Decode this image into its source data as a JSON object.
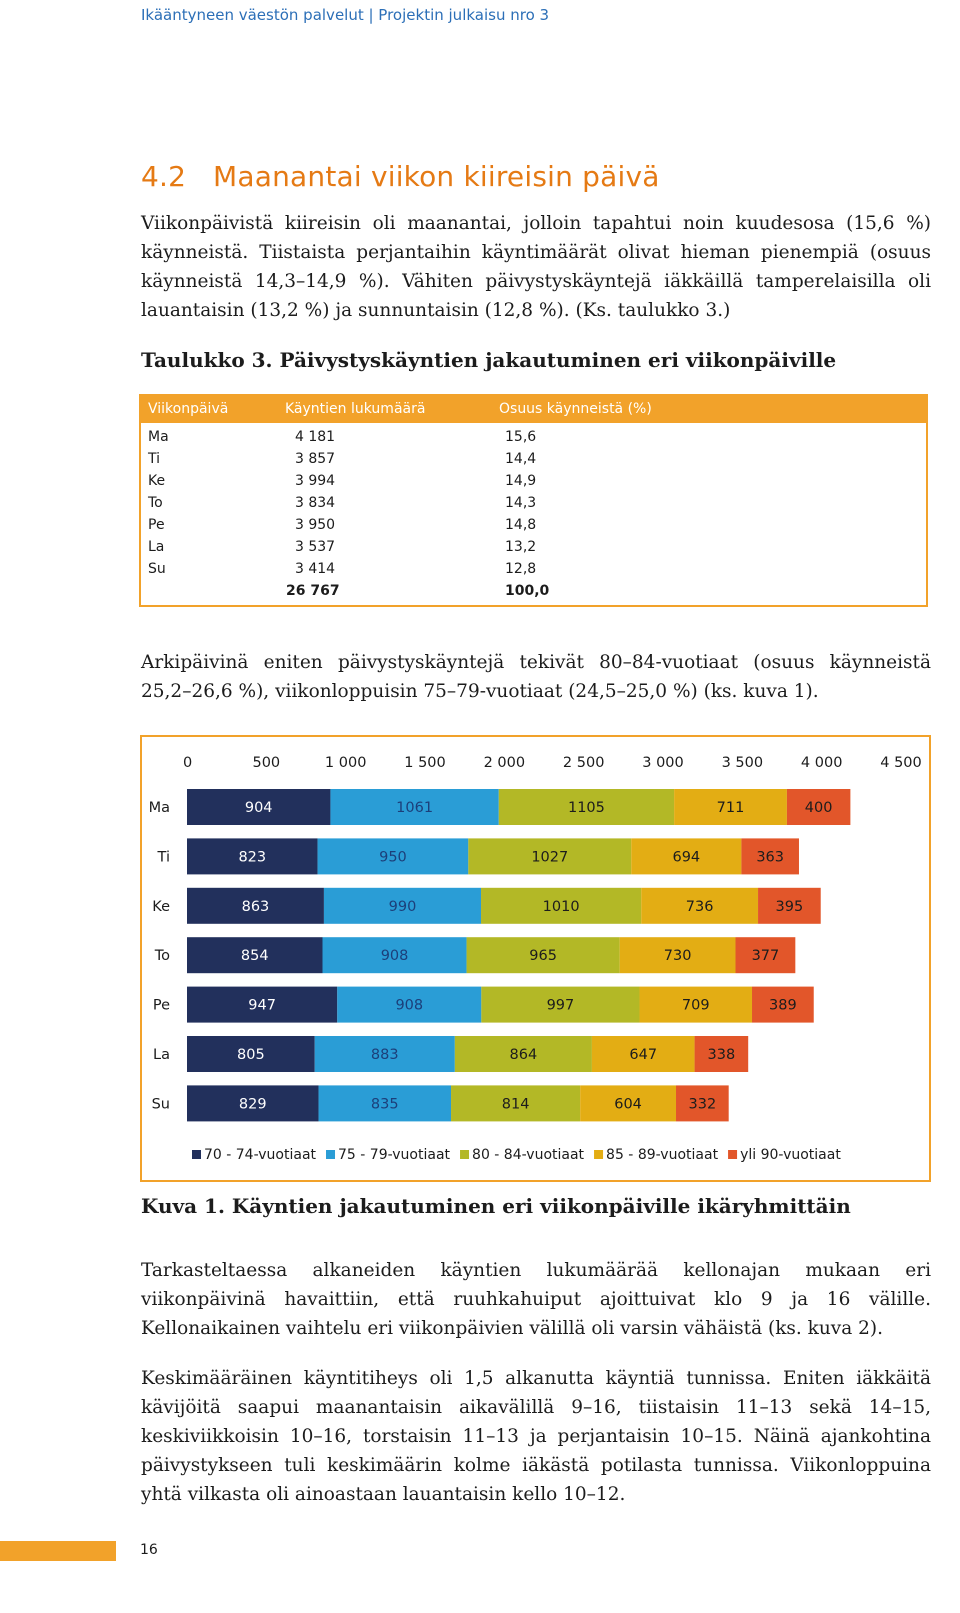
{
  "header": {
    "running_title": "Ikääntyneen väestön palvelut | Projektin julkaisu nro 3"
  },
  "section": {
    "number": "4.2",
    "title": "Maanantai viikon kiireisin päivä"
  },
  "paragraphs": {
    "p1": "Viikonpäivistä kiireisin oli maanantai, jolloin tapahtui noin kuudesosa (15,6 %) käynneistä. Tiistaista perjantaihin käyntimäärät olivat hieman pienempiä (osuus käynneistä 14,3–14,9 %). Vähiten päivystyskäyntejä iäkkäillä tamperelaisilla oli lauantaisin (13,2 %) ja sunnuntaisin (12,8 %). (Ks. taulukko 3.)",
    "p2": "Arkipäivinä eniten päivystyskäyntejä tekivät 80–84-vuotiaat (osuus käynneistä 25,2–26,6 %), viikonloppuisin 75–79-vuotiaat (24,5–25,0 %) (ks. kuva 1).",
    "p3": "Tarkasteltaessa alkaneiden käyntien lukumäärää kellonajan mukaan eri viikonpäivinä havaittiin, että ruuhkahuiput ajoittuivat klo 9 ja 16 välille. Kellonaikainen vaihtelu eri viikonpäivien välillä oli varsin vähäistä (ks. kuva 2).",
    "p4": "Keskimääräinen käyntitiheys oli 1,5 alkanutta käyntiä tunnissa. Eniten iäkkäitä kävijöitä saapui maanantaisin aikavälillä 9–16, tiistaisin 11–13 sekä 14–15, keskiviikkoisin 10–16, torstaisin 11–13 ja perjantaisin 10–15. Näinä ajankohtina päivystykseen tuli keskimäärin kolme iäkästä potilasta tunnissa. Viikonloppuina yhtä vilkasta oli ainoastaan lauantaisin kello 10–12."
  },
  "table": {
    "caption": "Taulukko 3. Päivystyskäyntien jakautuminen eri viikonpäiville",
    "headers": [
      "Viikonpäivä",
      "Käyntien lukumäärä",
      "Osuus käynneistä (%)"
    ],
    "rows": [
      [
        "Ma",
        "4 181",
        "15,6"
      ],
      [
        "Ti",
        "3 857",
        "14,4"
      ],
      [
        "Ke",
        "3 994",
        "14,9"
      ],
      [
        "To",
        "3 834",
        "14,3"
      ],
      [
        "Pe",
        "3 950",
        "14,8"
      ],
      [
        "La",
        "3 537",
        "13,2"
      ],
      [
        "Su",
        "3 414",
        "12,8"
      ]
    ],
    "total": [
      "",
      "26 767",
      "100,0"
    ]
  },
  "figure_caption": "Kuva 1. Käyntien jakautuminen eri viikonpäiville ikäryhmittäin",
  "colors": {
    "accent": "#f2a22a",
    "header_text": "#2c6fb7",
    "title": "#e57a14"
  },
  "chart_data": {
    "type": "bar",
    "orientation": "horizontal",
    "stacked": true,
    "categories": [
      "Ma",
      "Ti",
      "Ke",
      "To",
      "Pe",
      "La",
      "Su"
    ],
    "series": [
      {
        "name": "70 - 74-vuotiaat",
        "color": "#22305c",
        "label_color": "#ffffff",
        "values": [
          904,
          823,
          863,
          854,
          947,
          805,
          829
        ]
      },
      {
        "name": "75 - 79-vuotiaat",
        "color": "#2a9dd6",
        "label_color": "#1c3f7a",
        "values": [
          1061,
          950,
          990,
          908,
          908,
          883,
          835
        ]
      },
      {
        "name": "80 - 84-vuotiaat",
        "color": "#b3b826",
        "label_color": "#1c1c1c",
        "values": [
          1105,
          1027,
          1010,
          965,
          997,
          864,
          814
        ]
      },
      {
        "name": "85 - 89-vuotiaat",
        "color": "#e3ad14",
        "label_color": "#1c1c1c",
        "values": [
          711,
          694,
          736,
          730,
          709,
          647,
          604
        ]
      },
      {
        "name": "yli 90-vuotiaat",
        "color": "#e2562a",
        "label_color": "#1c1c1c",
        "values": [
          400,
          363,
          395,
          377,
          389,
          338,
          332
        ]
      }
    ],
    "x_ticks": [
      "0",
      "500",
      "1 000",
      "1 500",
      "2 000",
      "2 500",
      "3 000",
      "3 500",
      "4 000",
      "4 500"
    ],
    "xlim": [
      0,
      4500
    ],
    "x_axis_position": "top",
    "legend_position": "bottom",
    "grid": false,
    "title": "",
    "xlabel": "",
    "ylabel": ""
  },
  "footer": {
    "page_number": "16"
  }
}
